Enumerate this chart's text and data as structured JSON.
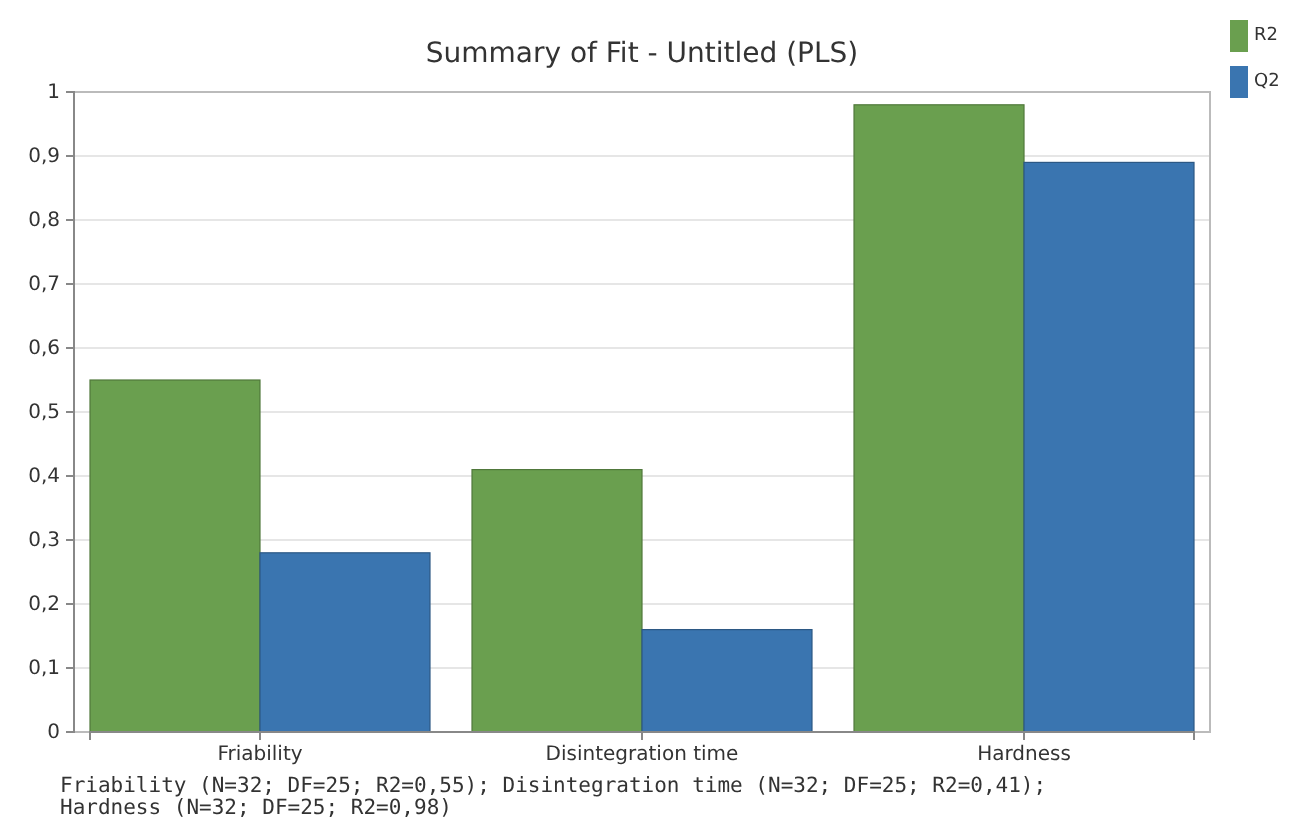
{
  "chart_data": {
    "type": "bar",
    "title": "Summary of Fit - Untitled (PLS)",
    "categories": [
      "Friability",
      "Disintegration time",
      "Hardness"
    ],
    "series": [
      {
        "name": "R2",
        "color": "#6a9f4f",
        "values": [
          0.55,
          0.41,
          0.98
        ]
      },
      {
        "name": "Q2",
        "color": "#3a75b0",
        "values": [
          0.28,
          0.16,
          0.89
        ]
      }
    ],
    "ylim": [
      0,
      1
    ],
    "yticks": [
      0,
      {
        "value": 0.1,
        "label": "0,1"
      },
      {
        "value": 0.2,
        "label": "0,2"
      },
      {
        "value": 0.3,
        "label": "0,3"
      },
      {
        "value": 0.4,
        "label": "0,4"
      },
      {
        "value": 0.5,
        "label": "0,5"
      },
      {
        "value": 0.6,
        "label": "0,6"
      },
      {
        "value": 0.7,
        "label": "0,7"
      },
      {
        "value": 0.8,
        "label": "0,8"
      },
      {
        "value": 0.9,
        "label": "0,9"
      },
      1
    ],
    "grid": "y",
    "legend": "top right",
    "annotations": [
      "Friability (N=32; DF=25; R2=0,55); Disintegration time (N=32; DF=25; R2=0,41);",
      "Hardness (N=32; DF=25; R2=0,98)"
    ]
  }
}
